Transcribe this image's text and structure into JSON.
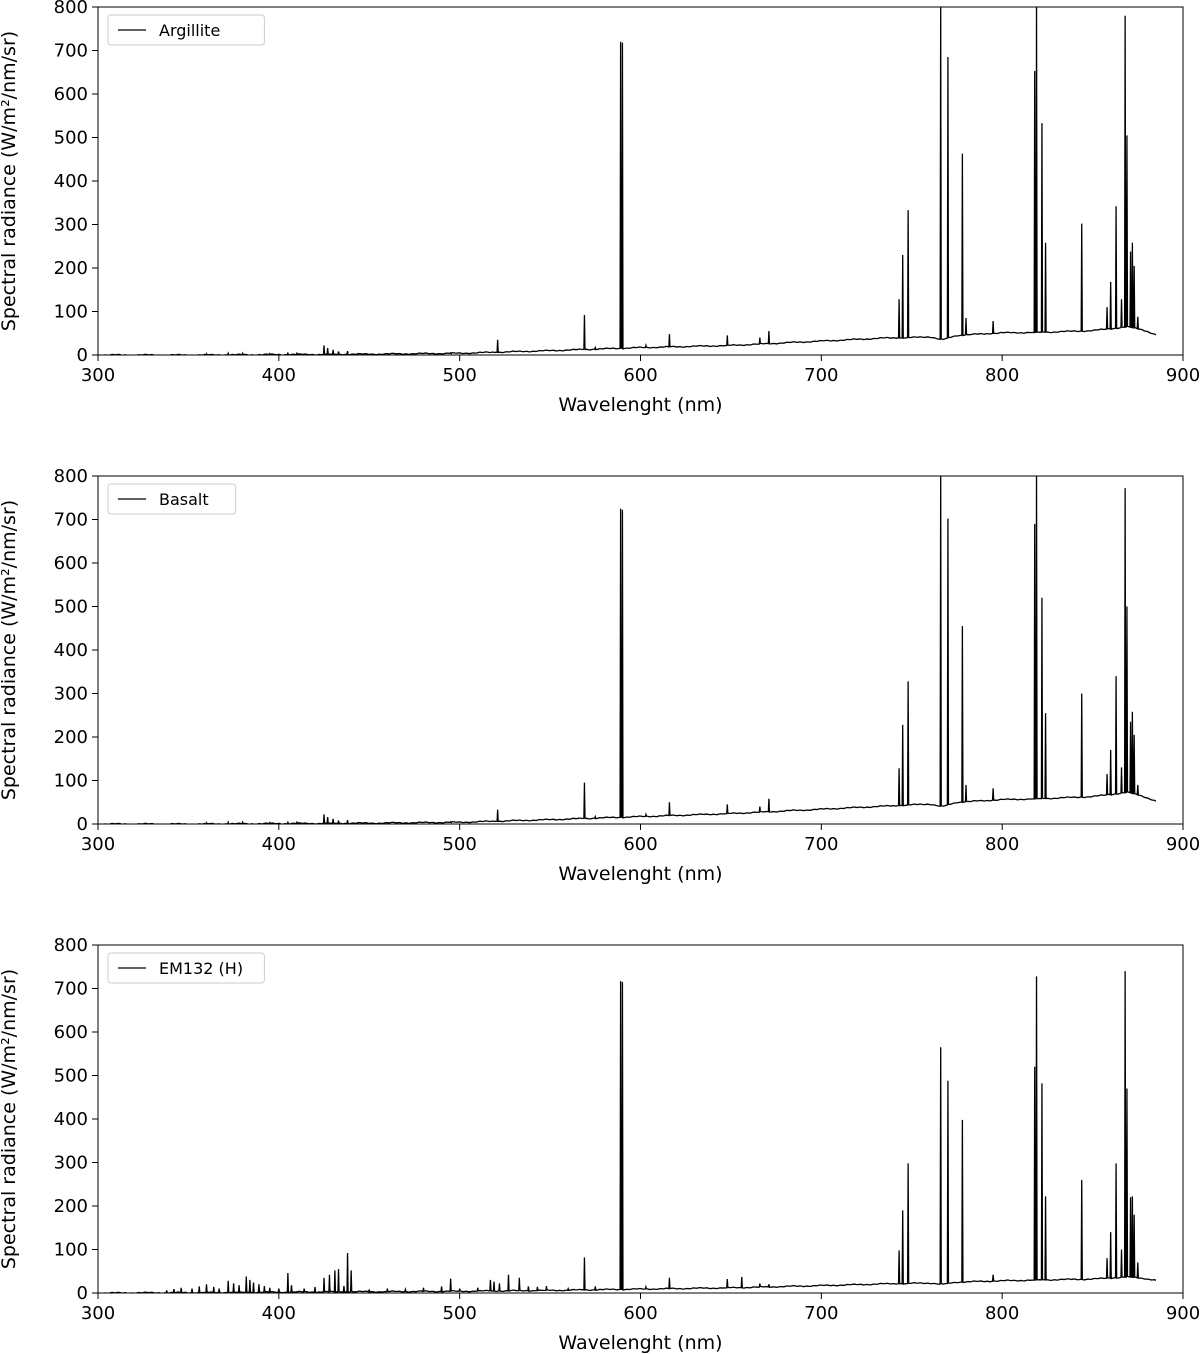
{
  "chart_data": [
    {
      "type": "line",
      "legend": "Argillite",
      "legend_position": "top-left",
      "xlabel": "Wavelenght (nm)",
      "ylabel": "Spectral radiance (W/m²/nm/sr)",
      "xlim": [
        300,
        900
      ],
      "ylim": [
        0,
        800
      ],
      "xticks": [
        300,
        400,
        500,
        600,
        700,
        800,
        900
      ],
      "yticks": [
        0,
        100,
        200,
        300,
        400,
        500,
        600,
        700,
        800
      ],
      "grid": false,
      "baseline": [
        [
          300,
          0
        ],
        [
          350,
          0
        ],
        [
          400,
          1
        ],
        [
          450,
          2
        ],
        [
          500,
          4
        ],
        [
          550,
          10
        ],
        [
          600,
          17
        ],
        [
          650,
          22
        ],
        [
          700,
          32
        ],
        [
          735,
          39
        ],
        [
          750,
          40
        ],
        [
          760,
          42
        ],
        [
          767,
          35
        ],
        [
          775,
          45
        ],
        [
          800,
          51
        ],
        [
          820,
          52
        ],
        [
          850,
          56
        ],
        [
          870,
          65
        ],
        [
          878,
          58
        ],
        [
          885,
          46
        ]
      ],
      "peaks": [
        [
          360,
          3
        ],
        [
          372,
          4
        ],
        [
          380,
          4
        ],
        [
          395,
          3
        ],
        [
          405,
          4
        ],
        [
          410,
          4
        ],
        [
          425,
          22
        ],
        [
          427,
          16
        ],
        [
          430,
          12
        ],
        [
          433,
          8
        ],
        [
          438,
          9
        ],
        [
          495,
          5
        ],
        [
          521,
          35
        ],
        [
          569,
          92
        ],
        [
          575,
          17
        ],
        [
          589,
          720
        ],
        [
          590,
          718
        ],
        [
          603,
          22
        ],
        [
          616,
          48
        ],
        [
          648,
          45
        ],
        [
          666,
          40
        ],
        [
          671,
          55
        ],
        [
          743,
          128
        ],
        [
          745,
          230
        ],
        [
          748,
          333
        ],
        [
          766,
          800
        ],
        [
          770,
          685
        ],
        [
          778,
          463
        ],
        [
          780,
          85
        ],
        [
          795,
          78
        ],
        [
          818,
          653
        ],
        [
          819,
          800
        ],
        [
          822,
          533
        ],
        [
          824,
          258
        ],
        [
          844,
          302
        ],
        [
          858,
          110
        ],
        [
          860,
          168
        ],
        [
          863,
          342
        ],
        [
          866,
          128
        ],
        [
          868,
          780
        ],
        [
          869,
          505
        ],
        [
          871,
          238
        ],
        [
          872,
          258
        ],
        [
          873,
          205
        ],
        [
          875,
          88
        ]
      ]
    },
    {
      "type": "line",
      "legend": "Basalt",
      "legend_position": "top-left",
      "xlabel": "Wavelenght (nm)",
      "ylabel": "Spectral radiance (W/m²/nm/sr)",
      "xlim": [
        300,
        900
      ],
      "ylim": [
        0,
        800
      ],
      "xticks": [
        300,
        400,
        500,
        600,
        700,
        800,
        900
      ],
      "yticks": [
        0,
        100,
        200,
        300,
        400,
        500,
        600,
        700,
        800
      ],
      "grid": false,
      "baseline": [
        [
          300,
          0
        ],
        [
          350,
          0
        ],
        [
          400,
          1
        ],
        [
          450,
          2
        ],
        [
          500,
          4
        ],
        [
          550,
          10
        ],
        [
          600,
          17
        ],
        [
          650,
          24
        ],
        [
          700,
          34
        ],
        [
          735,
          41
        ],
        [
          750,
          44
        ],
        [
          760,
          46
        ],
        [
          767,
          40
        ],
        [
          775,
          50
        ],
        [
          800,
          56
        ],
        [
          820,
          58
        ],
        [
          850,
          63
        ],
        [
          870,
          73
        ],
        [
          878,
          64
        ],
        [
          885,
          52
        ]
      ],
      "peaks": [
        [
          360,
          3
        ],
        [
          372,
          4
        ],
        [
          380,
          4
        ],
        [
          395,
          3
        ],
        [
          405,
          4
        ],
        [
          410,
          4
        ],
        [
          425,
          22
        ],
        [
          427,
          16
        ],
        [
          430,
          12
        ],
        [
          433,
          8
        ],
        [
          438,
          9
        ],
        [
          495,
          5
        ],
        [
          521,
          33
        ],
        [
          569,
          95
        ],
        [
          575,
          17
        ],
        [
          589,
          725
        ],
        [
          590,
          722
        ],
        [
          603,
          22
        ],
        [
          616,
          50
        ],
        [
          648,
          45
        ],
        [
          666,
          40
        ],
        [
          671,
          58
        ],
        [
          743,
          128
        ],
        [
          745,
          228
        ],
        [
          748,
          328
        ],
        [
          766,
          800
        ],
        [
          770,
          702
        ],
        [
          778,
          455
        ],
        [
          780,
          90
        ],
        [
          795,
          82
        ],
        [
          818,
          690
        ],
        [
          819,
          800
        ],
        [
          822,
          520
        ],
        [
          824,
          255
        ],
        [
          844,
          300
        ],
        [
          858,
          115
        ],
        [
          860,
          170
        ],
        [
          863,
          340
        ],
        [
          866,
          130
        ],
        [
          868,
          772
        ],
        [
          869,
          500
        ],
        [
          871,
          235
        ],
        [
          872,
          258
        ],
        [
          873,
          205
        ],
        [
          875,
          90
        ]
      ]
    },
    {
      "type": "line",
      "legend": "EM132 (H)",
      "legend_position": "top-left",
      "xlabel": "Wavelenght (nm)",
      "ylabel": "Spectral radiance (W/m²/nm/sr)",
      "xlim": [
        300,
        900
      ],
      "ylim": [
        0,
        800
      ],
      "xticks": [
        300,
        400,
        500,
        600,
        700,
        800,
        900
      ],
      "yticks": [
        0,
        100,
        200,
        300,
        400,
        500,
        600,
        700,
        800
      ],
      "grid": false,
      "baseline": [
        [
          300,
          0
        ],
        [
          350,
          1
        ],
        [
          400,
          2
        ],
        [
          450,
          3
        ],
        [
          500,
          4
        ],
        [
          550,
          6
        ],
        [
          600,
          9
        ],
        [
          650,
          12
        ],
        [
          700,
          17
        ],
        [
          735,
          21
        ],
        [
          750,
          22
        ],
        [
          760,
          23
        ],
        [
          767,
          20
        ],
        [
          775,
          25
        ],
        [
          800,
          28
        ],
        [
          820,
          30
        ],
        [
          850,
          32
        ],
        [
          870,
          37
        ],
        [
          878,
          34
        ],
        [
          885,
          29
        ]
      ],
      "peaks": [
        [
          338,
          6
        ],
        [
          342,
          9
        ],
        [
          346,
          12
        ],
        [
          352,
          10
        ],
        [
          356,
          15
        ],
        [
          360,
          20
        ],
        [
          364,
          14
        ],
        [
          367,
          10
        ],
        [
          372,
          28
        ],
        [
          375,
          22
        ],
        [
          378,
          18
        ],
        [
          382,
          38
        ],
        [
          384,
          30
        ],
        [
          386,
          24
        ],
        [
          389,
          20
        ],
        [
          392,
          16
        ],
        [
          395,
          12
        ],
        [
          400,
          10
        ],
        [
          405,
          46
        ],
        [
          407,
          18
        ],
        [
          414,
          10
        ],
        [
          420,
          14
        ],
        [
          425,
          35
        ],
        [
          428,
          42
        ],
        [
          431,
          52
        ],
        [
          433,
          55
        ],
        [
          436,
          16
        ],
        [
          438,
          92
        ],
        [
          440,
          52
        ],
        [
          450,
          8
        ],
        [
          460,
          10
        ],
        [
          470,
          8
        ],
        [
          480,
          12
        ],
        [
          490,
          15
        ],
        [
          495,
          33
        ],
        [
          500,
          10
        ],
        [
          510,
          12
        ],
        [
          517,
          30
        ],
        [
          519,
          26
        ],
        [
          522,
          22
        ],
        [
          527,
          42
        ],
        [
          533,
          35
        ],
        [
          538,
          15
        ],
        [
          543,
          14
        ],
        [
          548,
          16
        ],
        [
          560,
          10
        ],
        [
          569,
          82
        ],
        [
          575,
          15
        ],
        [
          589,
          717
        ],
        [
          590,
          715
        ],
        [
          603,
          14
        ],
        [
          616,
          35
        ],
        [
          648,
          32
        ],
        [
          656,
          37
        ],
        [
          666,
          22
        ],
        [
          671,
          20
        ],
        [
          743,
          98
        ],
        [
          745,
          190
        ],
        [
          748,
          298
        ],
        [
          766,
          565
        ],
        [
          770,
          488
        ],
        [
          778,
          398
        ],
        [
          795,
          42
        ],
        [
          818,
          520
        ],
        [
          819,
          728
        ],
        [
          822,
          482
        ],
        [
          824,
          222
        ],
        [
          844,
          260
        ],
        [
          858,
          80
        ],
        [
          860,
          140
        ],
        [
          863,
          298
        ],
        [
          866,
          100
        ],
        [
          868,
          740
        ],
        [
          869,
          470
        ],
        [
          871,
          220
        ],
        [
          872,
          222
        ],
        [
          873,
          180
        ],
        [
          875,
          70
        ]
      ]
    }
  ]
}
